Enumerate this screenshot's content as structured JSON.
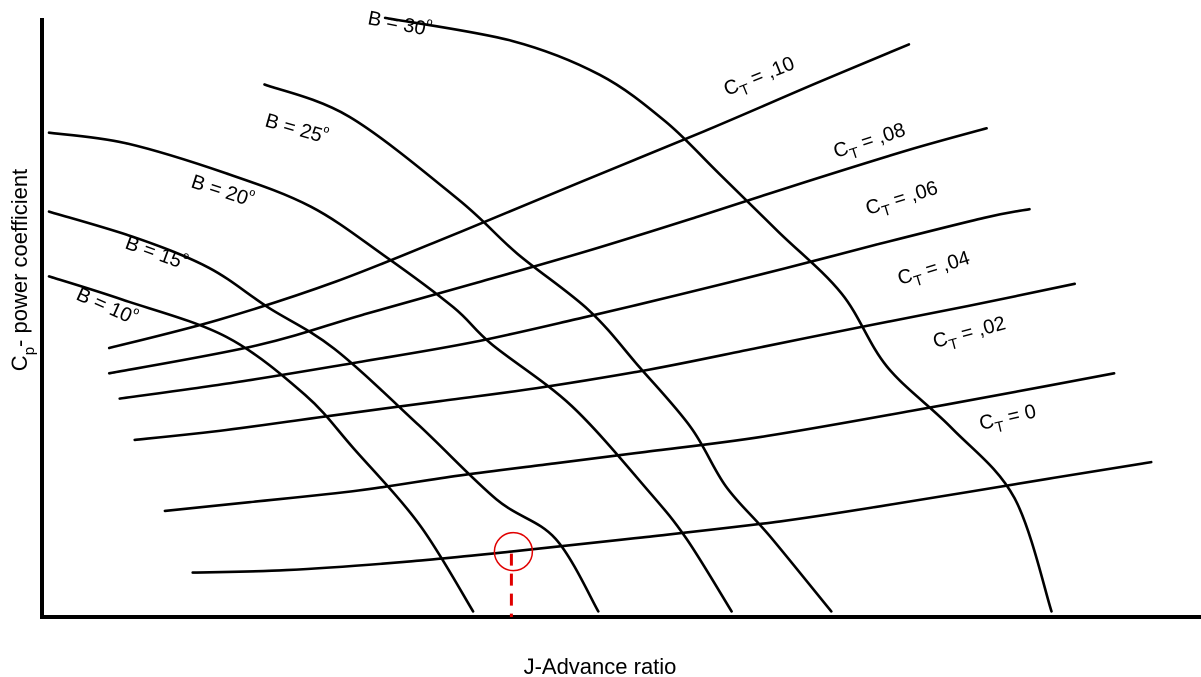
{
  "chart_data": {
    "type": "line",
    "title": "",
    "xlabel": "J-Advance ratio",
    "ylabel": "Cp- power coefficient",
    "ylabel_parts": {
      "base": "C",
      "sub": "p",
      "rest": "- power coefficient"
    },
    "grid": false,
    "legend": "none",
    "xlim": [
      0,
      1
    ],
    "ylim": [
      0,
      1
    ],
    "blade_angle_series": [
      {
        "name": "B = 10º",
        "label_base": "B = 10",
        "label_sup": "º",
        "points": [
          [
            0.006,
            0.552
          ],
          [
            0.07,
            0.514
          ],
          [
            0.159,
            0.454
          ],
          [
            0.227,
            0.36
          ],
          [
            0.269,
            0.273
          ],
          [
            0.326,
            0.149
          ],
          [
            0.372,
            0.009
          ]
        ]
      },
      {
        "name": "B = 15º",
        "label_base": "B = 15",
        "label_sup": "º",
        "points": [
          [
            0.006,
            0.657
          ],
          [
            0.082,
            0.614
          ],
          [
            0.144,
            0.566
          ],
          [
            0.195,
            0.502
          ],
          [
            0.252,
            0.435
          ],
          [
            0.325,
            0.311
          ],
          [
            0.392,
            0.191
          ],
          [
            0.443,
            0.127
          ],
          [
            0.48,
            0.009
          ]
        ]
      },
      {
        "name": "B = 20º",
        "label_base": "B = 20",
        "label_sup": "º",
        "points": [
          [
            0.006,
            0.785
          ],
          [
            0.072,
            0.768
          ],
          [
            0.159,
            0.719
          ],
          [
            0.232,
            0.665
          ],
          [
            0.295,
            0.586
          ],
          [
            0.355,
            0.502
          ],
          [
            0.388,
            0.442
          ],
          [
            0.457,
            0.342
          ],
          [
            0.522,
            0.207
          ],
          [
            0.556,
            0.127
          ],
          [
            0.595,
            0.009
          ]
        ]
      },
      {
        "name": "B = 25º",
        "label_base": "B = 25",
        "label_sup": "º",
        "points": [
          [
            0.192,
            0.863
          ],
          [
            0.265,
            0.811
          ],
          [
            0.359,
            0.677
          ],
          [
            0.41,
            0.589
          ],
          [
            0.472,
            0.497
          ],
          [
            0.515,
            0.406
          ],
          [
            0.56,
            0.307
          ],
          [
            0.59,
            0.212
          ],
          [
            0.628,
            0.131
          ],
          [
            0.681,
            0.009
          ]
        ]
      },
      {
        "name": "B = 30º",
        "label_base": "B = 30",
        "label_sup": "º",
        "points": [
          [
            0.296,
            0.971
          ],
          [
            0.405,
            0.934
          ],
          [
            0.481,
            0.879
          ],
          [
            0.538,
            0.803
          ],
          [
            0.584,
            0.719
          ],
          [
            0.635,
            0.625
          ],
          [
            0.69,
            0.524
          ],
          [
            0.729,
            0.406
          ],
          [
            0.785,
            0.306
          ],
          [
            0.839,
            0.193
          ],
          [
            0.871,
            0.009
          ]
        ]
      }
    ],
    "thrust_series": [
      {
        "name": "CT = ,10",
        "label_base": "C",
        "label_sub": "T",
        "label_rest": " = ,10",
        "points": [
          [
            0.058,
            0.436
          ],
          [
            0.153,
            0.482
          ],
          [
            0.254,
            0.544
          ],
          [
            0.362,
            0.625
          ],
          [
            0.466,
            0.706
          ],
          [
            0.571,
            0.787
          ],
          [
            0.669,
            0.866
          ],
          [
            0.748,
            0.928
          ]
        ]
      },
      {
        "name": "CT = ,08",
        "label_base": "C",
        "label_sub": "T",
        "label_rest": " = ,08",
        "points": [
          [
            0.058,
            0.395
          ],
          [
            0.185,
            0.44
          ],
          [
            0.277,
            0.49
          ],
          [
            0.372,
            0.54
          ],
          [
            0.472,
            0.594
          ],
          [
            0.566,
            0.649
          ],
          [
            0.657,
            0.704
          ],
          [
            0.748,
            0.757
          ],
          [
            0.815,
            0.792
          ]
        ]
      },
      {
        "name": "CT = ,06",
        "label_base": "C",
        "label_sub": "T",
        "label_rest": " = ,06",
        "points": [
          [
            0.067,
            0.354
          ],
          [
            0.166,
            0.38
          ],
          [
            0.276,
            0.414
          ],
          [
            0.371,
            0.445
          ],
          [
            0.466,
            0.485
          ],
          [
            0.549,
            0.522
          ],
          [
            0.641,
            0.565
          ],
          [
            0.719,
            0.603
          ],
          [
            0.813,
            0.647
          ],
          [
            0.852,
            0.661
          ]
        ]
      },
      {
        "name": "CT = ,04",
        "label_base": "C",
        "label_sub": "T",
        "label_rest": " = ,04",
        "points": [
          [
            0.08,
            0.287
          ],
          [
            0.159,
            0.303
          ],
          [
            0.248,
            0.326
          ],
          [
            0.344,
            0.35
          ],
          [
            0.427,
            0.371
          ],
          [
            0.524,
            0.401
          ],
          [
            0.617,
            0.436
          ],
          [
            0.704,
            0.469
          ],
          [
            0.799,
            0.504
          ],
          [
            0.891,
            0.54
          ]
        ]
      },
      {
        "name": "CT = ,02",
        "label_base": "C",
        "label_sub": "T",
        "label_rest": " = ,02",
        "points": [
          [
            0.106,
            0.172
          ],
          [
            0.179,
            0.186
          ],
          [
            0.273,
            0.205
          ],
          [
            0.359,
            0.229
          ],
          [
            0.442,
            0.249
          ],
          [
            0.518,
            0.267
          ],
          [
            0.621,
            0.292
          ],
          [
            0.75,
            0.334
          ],
          [
            0.866,
            0.374
          ],
          [
            0.925,
            0.395
          ]
        ]
      },
      {
        "name": "CT = 0",
        "label_base": "C",
        "label_sub": "T",
        "label_rest": " = 0",
        "points": [
          [
            0.13,
            0.072
          ],
          [
            0.211,
            0.076
          ],
          [
            0.311,
            0.089
          ],
          [
            0.405,
            0.106
          ],
          [
            0.518,
            0.129
          ],
          [
            0.637,
            0.155
          ],
          [
            0.738,
            0.184
          ],
          [
            0.868,
            0.224
          ],
          [
            0.957,
            0.251
          ]
        ]
      }
    ],
    "operating_point": {
      "x": 0.405,
      "y": 0.106
    }
  }
}
